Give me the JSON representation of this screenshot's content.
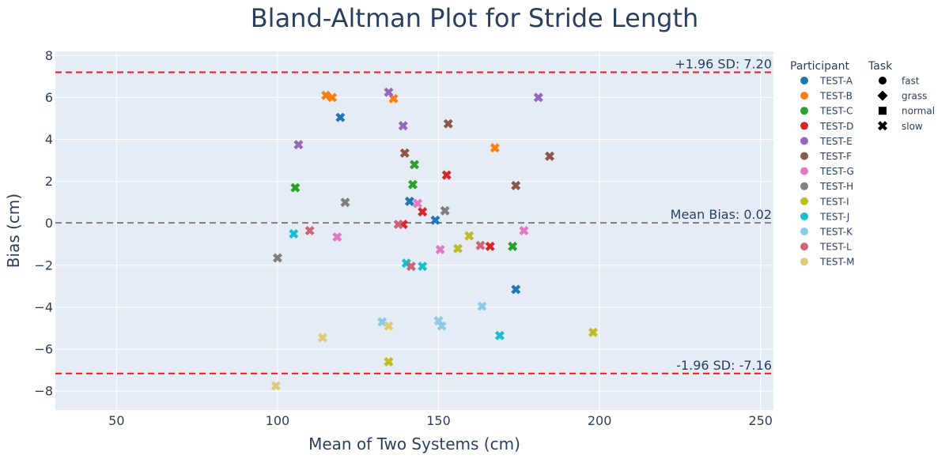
{
  "chart_data": {
    "type": "scatter",
    "title": "Bland-Altman Plot for Stride Length",
    "xlabel": "Mean of Two Systems (cm)",
    "ylabel": "Bias (cm)",
    "xlim": [
      31,
      254
    ],
    "ylim": [
      -8.9,
      8.2
    ],
    "xticks": [
      50,
      100,
      150,
      200,
      250
    ],
    "yticks": [
      -8,
      -6,
      -4,
      -2,
      0,
      2,
      4,
      6,
      8
    ],
    "grid": true,
    "reference_lines": [
      {
        "y": 7.2,
        "label": "+1.96 SD: 7.20",
        "color": "#e31a1c",
        "style": "dashed"
      },
      {
        "y": 0.02,
        "label": "Mean Bias: 0.02",
        "color": "#808080",
        "style": "dashed"
      },
      {
        "y": -7.16,
        "label": "-1.96 SD: -7.16",
        "color": "#e31a1c",
        "style": "dashed"
      }
    ],
    "legend": {
      "placement": "right",
      "participant_title": "Participant",
      "task_title": "Task",
      "participants": [
        {
          "name": "TEST-A",
          "color": "#1f77b4"
        },
        {
          "name": "TEST-B",
          "color": "#ff7f0e"
        },
        {
          "name": "TEST-C",
          "color": "#2ca02c"
        },
        {
          "name": "TEST-D",
          "color": "#d62728"
        },
        {
          "name": "TEST-E",
          "color": "#9467bd"
        },
        {
          "name": "TEST-F",
          "color": "#8c564b"
        },
        {
          "name": "TEST-G",
          "color": "#e377c2"
        },
        {
          "name": "TEST-H",
          "color": "#7f7f7f"
        },
        {
          "name": "TEST-I",
          "color": "#bcbd22"
        },
        {
          "name": "TEST-J",
          "color": "#17becf"
        },
        {
          "name": "TEST-K",
          "color": "#8ecae6"
        },
        {
          "name": "TEST-L",
          "color": "#cc6677"
        },
        {
          "name": "TEST-M",
          "color": "#ddcc77"
        }
      ],
      "tasks": [
        {
          "name": "fast",
          "symbol": "circle"
        },
        {
          "name": "grass",
          "symbol": "diamond"
        },
        {
          "name": "normal",
          "symbol": "square"
        },
        {
          "name": "slow",
          "symbol": "x"
        }
      ]
    },
    "points": [
      {
        "participant": "TEST-A",
        "task": "fast",
        "x": 174,
        "y": -3.15
      },
      {
        "participant": "TEST-A",
        "task": "grass",
        "x": 149,
        "y": 0.15
      },
      {
        "participant": "TEST-A",
        "task": "normal",
        "x": 141,
        "y": 1.05
      },
      {
        "participant": "TEST-A",
        "task": "slow",
        "x": 119.5,
        "y": 5.05
      },
      {
        "participant": "TEST-B",
        "task": "fast",
        "x": 167.5,
        "y": 3.6
      },
      {
        "participant": "TEST-B",
        "task": "grass",
        "x": 117,
        "y": 6.0
      },
      {
        "participant": "TEST-B",
        "task": "normal",
        "x": 136,
        "y": 5.95
      },
      {
        "participant": "TEST-B",
        "task": "slow",
        "x": 115,
        "y": 6.1
      },
      {
        "participant": "TEST-C",
        "task": "fast",
        "x": 173,
        "y": -1.1
      },
      {
        "participant": "TEST-C",
        "task": "grass",
        "x": 142.5,
        "y": 2.8
      },
      {
        "participant": "TEST-C",
        "task": "normal",
        "x": 142,
        "y": 1.85
      },
      {
        "participant": "TEST-C",
        "task": "slow",
        "x": 105.5,
        "y": 1.7
      },
      {
        "participant": "TEST-D",
        "task": "fast",
        "x": 166,
        "y": -1.1
      },
      {
        "participant": "TEST-D",
        "task": "grass",
        "x": 152.5,
        "y": 2.3
      },
      {
        "participant": "TEST-D",
        "task": "normal",
        "x": 145,
        "y": 0.55
      },
      {
        "participant": "TEST-D",
        "task": "slow",
        "x": 139,
        "y": -0.05
      },
      {
        "participant": "TEST-E",
        "task": "fast",
        "x": 181,
        "y": 6.0
      },
      {
        "participant": "TEST-E",
        "task": "grass",
        "x": 134.5,
        "y": 6.25
      },
      {
        "participant": "TEST-E",
        "task": "normal",
        "x": 139,
        "y": 4.65
      },
      {
        "participant": "TEST-E",
        "task": "slow",
        "x": 106.5,
        "y": 3.75
      },
      {
        "participant": "TEST-F",
        "task": "fast",
        "x": 184.5,
        "y": 3.2
      },
      {
        "participant": "TEST-F",
        "task": "grass",
        "x": 174,
        "y": 1.8
      },
      {
        "participant": "TEST-F",
        "task": "normal",
        "x": 153,
        "y": 4.75
      },
      {
        "participant": "TEST-F",
        "task": "slow",
        "x": 139.5,
        "y": 3.35
      },
      {
        "participant": "TEST-G",
        "task": "fast",
        "x": 176.5,
        "y": -0.35
      },
      {
        "participant": "TEST-G",
        "task": "grass",
        "x": 150.5,
        "y": -1.25
      },
      {
        "participant": "TEST-G",
        "task": "normal",
        "x": 143.5,
        "y": 0.95
      },
      {
        "participant": "TEST-G",
        "task": "slow",
        "x": 118.5,
        "y": -0.65
      },
      {
        "participant": "TEST-H",
        "task": "fast",
        "x": 152,
        "y": 0.6
      },
      {
        "participant": "TEST-H",
        "task": "normal",
        "x": 121,
        "y": 1.0
      },
      {
        "participant": "TEST-H",
        "task": "slow",
        "x": 100,
        "y": -1.65
      },
      {
        "participant": "TEST-I",
        "task": "fast",
        "x": 198,
        "y": -5.2
      },
      {
        "participant": "TEST-I",
        "task": "grass",
        "x": 159.5,
        "y": -0.6
      },
      {
        "participant": "TEST-I",
        "task": "normal",
        "x": 156,
        "y": -1.2
      },
      {
        "participant": "TEST-I",
        "task": "slow",
        "x": 134.5,
        "y": -6.6
      },
      {
        "participant": "TEST-J",
        "task": "fast",
        "x": 169,
        "y": -5.35
      },
      {
        "participant": "TEST-J",
        "task": "grass",
        "x": 145,
        "y": -2.05
      },
      {
        "participant": "TEST-J",
        "task": "normal",
        "x": 140,
        "y": -1.9
      },
      {
        "participant": "TEST-J",
        "task": "slow",
        "x": 105,
        "y": -0.5
      },
      {
        "participant": "TEST-K",
        "task": "fast",
        "x": 163.5,
        "y": -3.95
      },
      {
        "participant": "TEST-K",
        "task": "grass",
        "x": 151,
        "y": -4.9
      },
      {
        "participant": "TEST-K",
        "task": "normal",
        "x": 150,
        "y": -4.65
      },
      {
        "participant": "TEST-K",
        "task": "slow",
        "x": 132.5,
        "y": -4.7
      },
      {
        "participant": "TEST-L",
        "task": "fast",
        "x": 163,
        "y": -1.05
      },
      {
        "participant": "TEST-L",
        "task": "grass",
        "x": 141.5,
        "y": -2.05
      },
      {
        "participant": "TEST-L",
        "task": "normal",
        "x": 137.5,
        "y": -0.05
      },
      {
        "participant": "TEST-L",
        "task": "slow",
        "x": 110,
        "y": -0.35
      },
      {
        "participant": "TEST-M",
        "task": "fast",
        "x": 134.5,
        "y": -4.9
      },
      {
        "participant": "TEST-M",
        "task": "normal",
        "x": 114,
        "y": -5.45
      },
      {
        "participant": "TEST-M",
        "task": "slow",
        "x": 99.5,
        "y": -7.75
      }
    ]
  }
}
